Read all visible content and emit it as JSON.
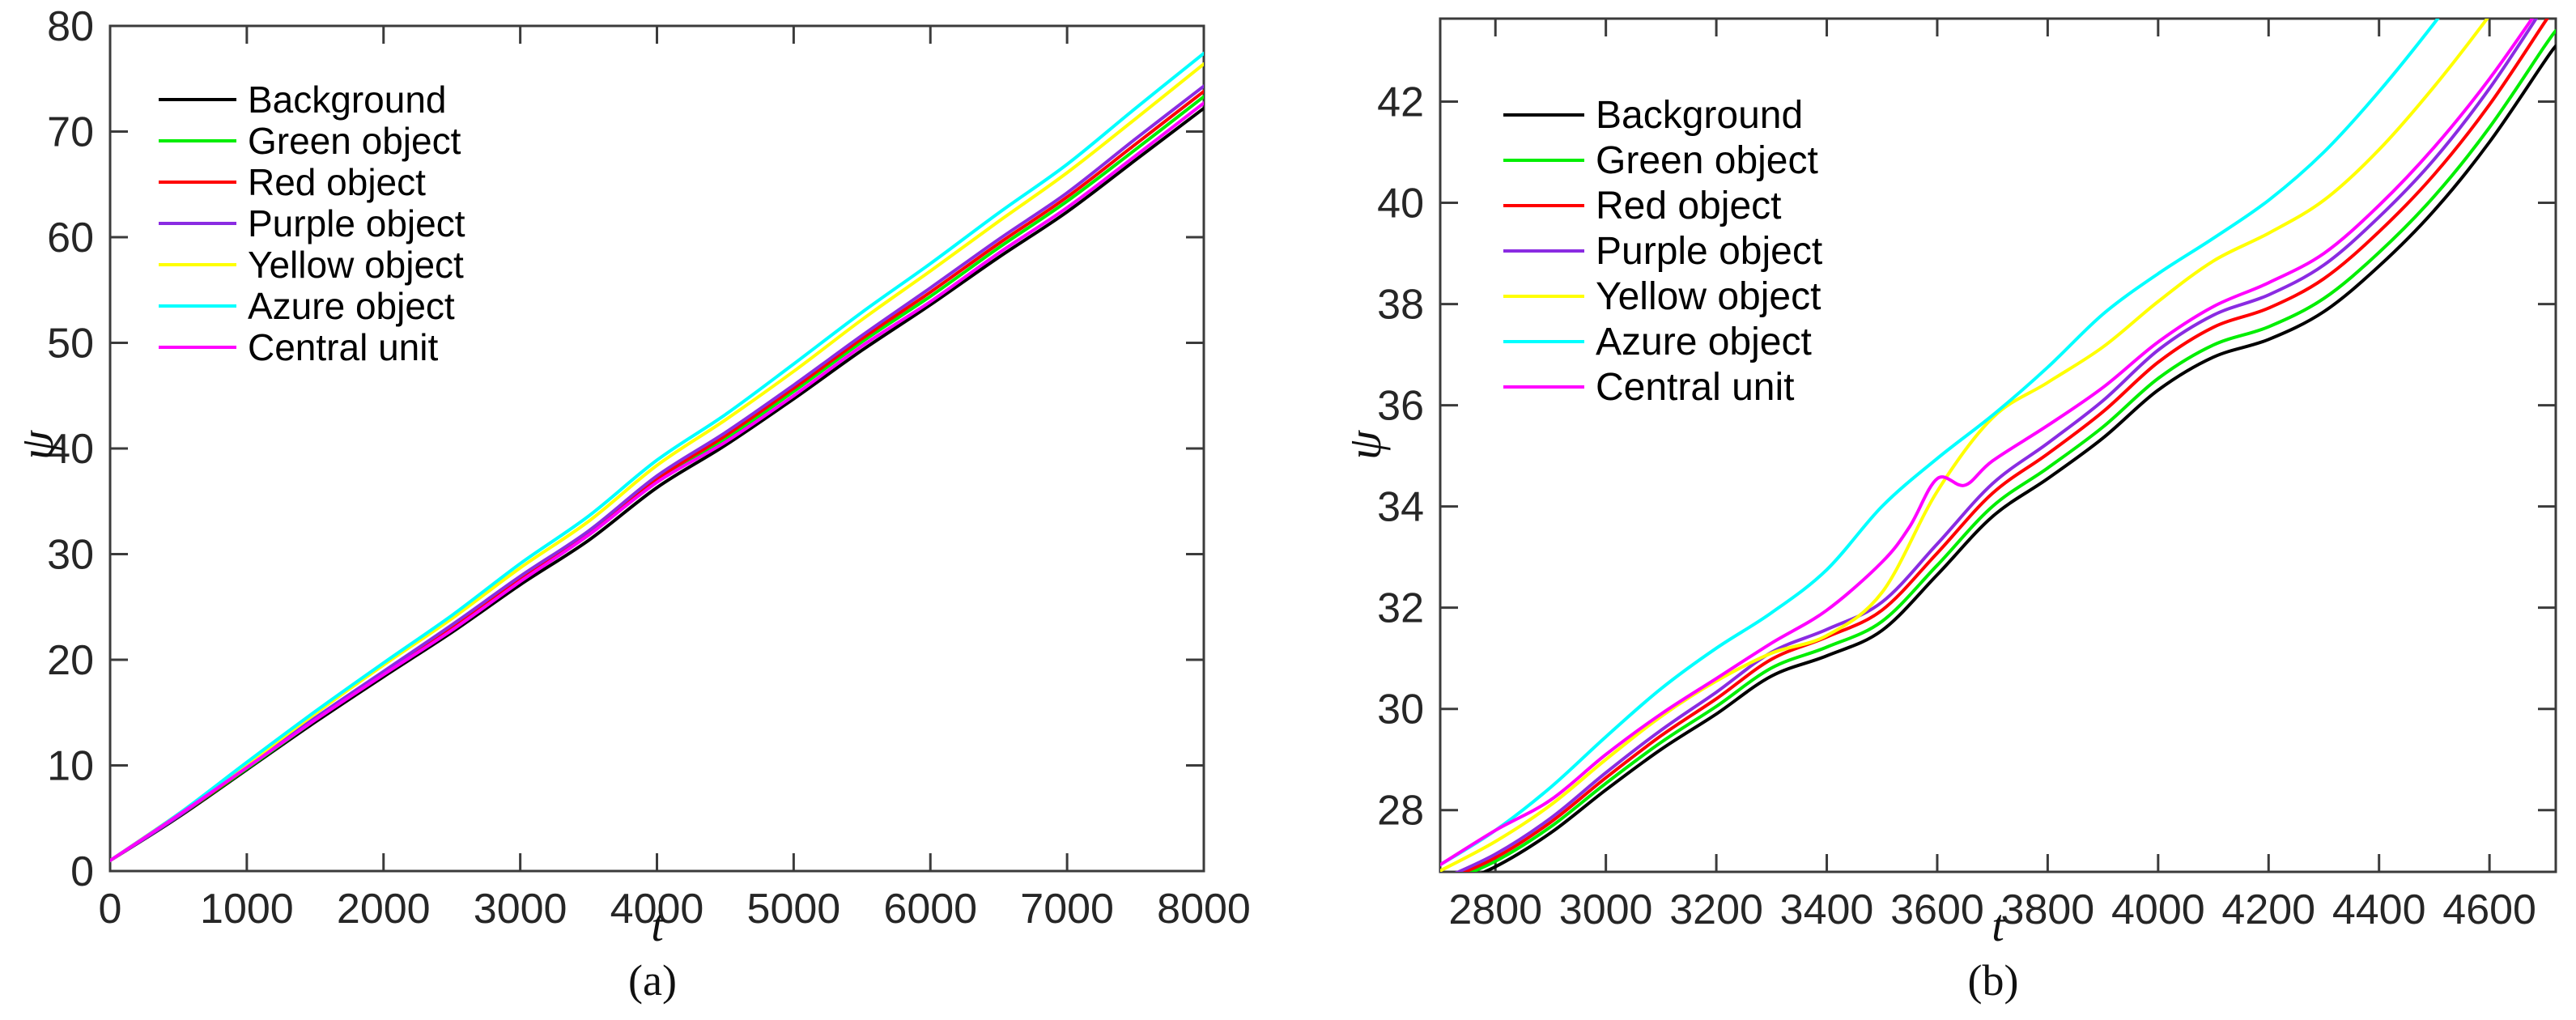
{
  "figure": {
    "background": "#ffffff",
    "axis_color": "#3b3b3b",
    "text_color": "#262626"
  },
  "chart_data": [
    {
      "type": "line",
      "caption": "(a)",
      "xlabel": "t",
      "ylabel": "ψ",
      "xlim": [
        0,
        8000
      ],
      "ylim": [
        0,
        80
      ],
      "xticks": [
        0,
        1000,
        2000,
        3000,
        4000,
        5000,
        6000,
        7000,
        8000
      ],
      "yticks": [
        0,
        10,
        20,
        30,
        40,
        50,
        60,
        70,
        80
      ],
      "grid": false,
      "legend_position": "upper-left-inside",
      "series": [
        {
          "name": "Background",
          "color": "#000000",
          "x": [
            0,
            500,
            1000,
            1500,
            2000,
            2500,
            3000,
            3500,
            4000,
            4500,
            5000,
            5500,
            6000,
            6500,
            7000,
            7500,
            8000
          ],
          "y": [
            1.0,
            5.1,
            9.6,
            14.1,
            18.4,
            22.6,
            27.1,
            31.3,
            36.3,
            40.3,
            44.7,
            49.3,
            53.6,
            58.1,
            62.4,
            67.3,
            72.2
          ]
        },
        {
          "name": "Green object",
          "color": "#00ee00",
          "x": [
            0,
            500,
            1000,
            1500,
            2000,
            2500,
            3000,
            3500,
            4000,
            4500,
            5000,
            5500,
            6000,
            6500,
            7000,
            7500,
            8000
          ],
          "y": [
            1.0,
            5.2,
            9.7,
            14.3,
            18.7,
            22.9,
            27.5,
            31.8,
            36.9,
            40.9,
            45.4,
            50.1,
            54.4,
            59.0,
            63.4,
            68.3,
            73.3
          ]
        },
        {
          "name": "Red object",
          "color": "#ff0000",
          "x": [
            0,
            500,
            1000,
            1500,
            2000,
            2500,
            3000,
            3500,
            4000,
            4500,
            5000,
            5500,
            6000,
            6500,
            7000,
            7500,
            8000
          ],
          "y": [
            1.0,
            5.2,
            9.8,
            14.4,
            18.8,
            23.1,
            27.7,
            32.0,
            37.1,
            41.2,
            45.7,
            50.4,
            54.8,
            59.4,
            63.8,
            68.8,
            73.8
          ]
        },
        {
          "name": "Purple object",
          "color": "#8a2be2",
          "x": [
            0,
            500,
            1000,
            1500,
            2000,
            2500,
            3000,
            3500,
            4000,
            4500,
            5000,
            5500,
            6000,
            6500,
            7000,
            7500,
            8000
          ],
          "y": [
            1.0,
            5.2,
            9.9,
            14.5,
            18.9,
            23.3,
            27.9,
            32.2,
            37.4,
            41.5,
            46.0,
            50.7,
            55.2,
            59.8,
            64.2,
            69.3,
            74.3
          ]
        },
        {
          "name": "Yellow object",
          "color": "#ffff00",
          "x": [
            0,
            500,
            1000,
            1500,
            2000,
            2500,
            3000,
            3500,
            4000,
            4500,
            5000,
            5500,
            6000,
            6500,
            7000,
            7500,
            8000
          ],
          "y": [
            1.0,
            5.4,
            10.1,
            14.9,
            19.5,
            23.9,
            28.7,
            33.1,
            38.4,
            42.7,
            47.3,
            52.2,
            56.8,
            61.5,
            66.1,
            71.2,
            76.4
          ]
        },
        {
          "name": "Azure object",
          "color": "#00ffff",
          "x": [
            0,
            500,
            1000,
            1500,
            2000,
            2500,
            3000,
            3500,
            4000,
            4500,
            5000,
            5500,
            6000,
            6500,
            7000,
            7500,
            8000
          ],
          "y": [
            1.0,
            5.4,
            10.3,
            15.1,
            19.7,
            24.2,
            29.1,
            33.6,
            38.9,
            43.2,
            48.0,
            52.9,
            57.5,
            62.3,
            66.9,
            72.2,
            77.4
          ]
        },
        {
          "name": "Central unit",
          "color": "#ff00ff",
          "x": [
            0,
            500,
            1000,
            1500,
            2000,
            2500,
            3000,
            3500,
            4000,
            4500,
            5000,
            5500,
            6000,
            6500,
            7000,
            7500,
            8000
          ],
          "y": [
            1.0,
            5.3,
            9.8,
            14.3,
            18.6,
            22.8,
            27.4,
            31.8,
            36.8,
            40.6,
            45.0,
            49.7,
            53.9,
            58.5,
            62.8,
            67.7,
            72.7
          ]
        }
      ]
    },
    {
      "type": "line",
      "caption": "(b)",
      "xlabel": "t",
      "ylabel": "ψ",
      "xlim": [
        2700,
        4720
      ],
      "ylim": [
        26.78,
        43.64
      ],
      "xticks": [
        2800,
        3000,
        3200,
        3400,
        3600,
        3800,
        4000,
        4200,
        4400,
        4600
      ],
      "yticks": [
        28,
        30,
        32,
        34,
        36,
        38,
        40,
        42
      ],
      "grid": false,
      "legend_position": "upper-left-inside",
      "series": [
        {
          "name": "Background",
          "color": "#000000",
          "x": [
            2700,
            2800,
            2900,
            3000,
            3100,
            3200,
            3300,
            3400,
            3500,
            3600,
            3700,
            3800,
            3900,
            4000,
            4100,
            4200,
            4300,
            4400,
            4500,
            4600,
            4700,
            4720
          ],
          "y": [
            26.42,
            26.88,
            27.55,
            28.4,
            29.2,
            29.9,
            30.65,
            31.05,
            31.55,
            32.65,
            33.8,
            34.55,
            35.35,
            36.3,
            36.95,
            37.3,
            37.85,
            38.75,
            39.85,
            41.2,
            42.8,
            43.1
          ]
        },
        {
          "name": "Green object",
          "color": "#00ee00",
          "x": [
            2700,
            2800,
            2900,
            3000,
            3100,
            3200,
            3300,
            3400,
            3500,
            3600,
            3700,
            3800,
            3900,
            4000,
            4100,
            4200,
            4300,
            4400,
            4500,
            4600,
            4700,
            4720
          ],
          "y": [
            26.52,
            26.99,
            27.67,
            28.53,
            29.34,
            30.05,
            30.81,
            31.22,
            31.73,
            32.84,
            34.0,
            34.76,
            35.57,
            36.53,
            37.19,
            37.55,
            38.11,
            39.02,
            40.13,
            41.49,
            43.1,
            43.4
          ]
        },
        {
          "name": "Red object",
          "color": "#ff0000",
          "x": [
            2700,
            2800,
            2900,
            3000,
            3100,
            3200,
            3300,
            3400,
            3500,
            3600,
            3700,
            3800,
            3900,
            4000,
            4100,
            4200,
            4300,
            4400,
            4500,
            4600,
            4700,
            4720
          ],
          "y": [
            26.57,
            27.06,
            27.76,
            28.64,
            29.47,
            30.2,
            30.98,
            31.42,
            31.95,
            33.08,
            34.26,
            35.04,
            35.87,
            36.85,
            37.54,
            37.92,
            38.5,
            39.43,
            40.56,
            41.94,
            43.57,
            43.9
          ]
        },
        {
          "name": "Purple object",
          "color": "#8a2be2",
          "x": [
            2700,
            2800,
            2900,
            3000,
            3100,
            3200,
            3300,
            3400,
            3500,
            3600,
            3700,
            3800,
            3900,
            4000,
            4100,
            4200,
            4300,
            4400,
            4500,
            4600,
            4700,
            4720
          ],
          "y": [
            26.62,
            27.13,
            27.84,
            28.74,
            29.58,
            30.33,
            31.12,
            31.57,
            32.11,
            33.26,
            34.45,
            35.25,
            36.09,
            37.09,
            37.78,
            38.18,
            38.77,
            39.72,
            40.86,
            42.26,
            43.9,
            44.22
          ]
        },
        {
          "name": "Yellow object",
          "color": "#ffff00",
          "x": [
            2700,
            2800,
            2900,
            3000,
            3100,
            3200,
            3300,
            3400,
            3500,
            3600,
            3700,
            3800,
            3900,
            4000,
            4100,
            4200,
            4300,
            4400,
            4500,
            4600,
            4700,
            4720
          ],
          "y": [
            26.8,
            27.38,
            28.1,
            29.0,
            29.85,
            30.55,
            31.1,
            31.45,
            32.3,
            34.3,
            35.75,
            36.45,
            37.15,
            38.05,
            38.85,
            39.4,
            40.05,
            41.05,
            42.3,
            43.7,
            45.2,
            45.5
          ]
        },
        {
          "name": "Azure object",
          "color": "#00ffff",
          "x": [
            2700,
            2800,
            2900,
            3000,
            3100,
            3200,
            3300,
            3400,
            3500,
            3600,
            3700,
            3800,
            3900,
            4000,
            4100,
            4200,
            4300,
            4400,
            4500,
            4600,
            4700,
            4720
          ],
          "y": [
            26.92,
            27.6,
            28.45,
            29.45,
            30.4,
            31.2,
            31.9,
            32.75,
            34.0,
            34.95,
            35.8,
            36.75,
            37.8,
            38.6,
            39.3,
            40.05,
            41.0,
            42.2,
            43.55,
            45.0,
            46.2,
            46.5
          ]
        },
        {
          "name": "Central unit",
          "color": "#ff00ff",
          "x": [
            2700,
            2800,
            2900,
            3000,
            3100,
            3200,
            3300,
            3400,
            3500,
            3550,
            3600,
            3650,
            3700,
            3800,
            3900,
            4000,
            4100,
            4200,
            4300,
            4400,
            4500,
            4600,
            4700,
            4720
          ],
          "y": [
            26.92,
            27.6,
            28.2,
            29.1,
            29.9,
            30.6,
            31.3,
            31.95,
            32.9,
            33.6,
            34.55,
            34.42,
            34.9,
            35.6,
            36.35,
            37.25,
            37.95,
            38.42,
            39.0,
            39.95,
            41.1,
            42.45,
            44.0,
            44.3
          ]
        }
      ]
    }
  ]
}
